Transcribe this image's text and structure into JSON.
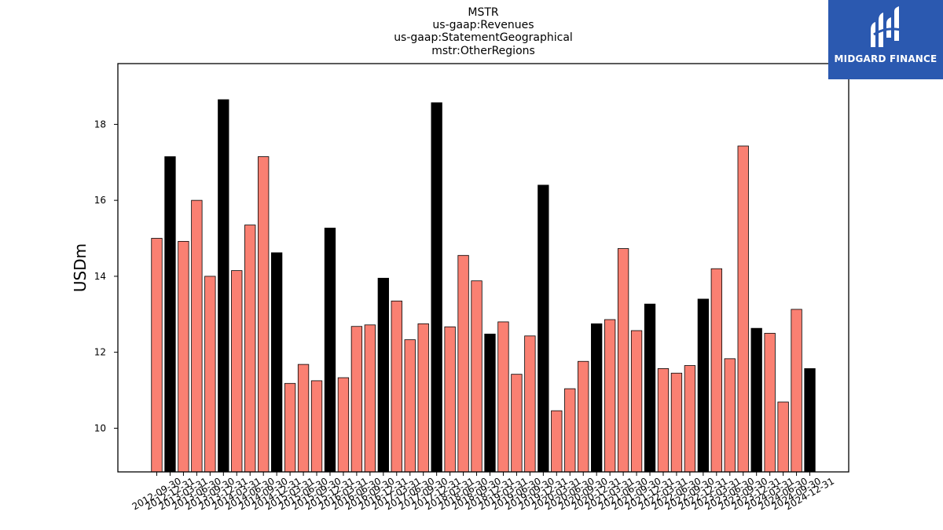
{
  "chart_data": {
    "type": "bar",
    "title_lines": [
      "MSTR",
      "us-gaap:Revenues",
      "us-gaap:StatementGeographical",
      "mstr:OtherRegions"
    ],
    "xlabel": "",
    "ylabel": "USDm",
    "ylim": [
      8.85,
      19.6
    ],
    "yticks": [
      10,
      12,
      14,
      16,
      18
    ],
    "bar_fill_quarter": "#fa8072",
    "bar_fill_year_end": "#000000",
    "categories": [
      "2012-09-30",
      "2012-12-31",
      "2013-03-31",
      "2013-06-30",
      "2013-09-30",
      "2013-12-31",
      "2014-03-31",
      "2014-06-30",
      "2014-09-30",
      "2014-12-31",
      "2015-03-31",
      "2015-06-30",
      "2015-09-30",
      "2015-12-31",
      "2016-03-31",
      "2016-06-30",
      "2016-09-30",
      "2016-12-31",
      "2017-03-31",
      "2017-06-30",
      "2017-09-30",
      "2017-12-31",
      "2018-03-31",
      "2018-06-30",
      "2018-09-30",
      "2018-12-31",
      "2019-03-31",
      "2019-06-30",
      "2019-09-30",
      "2019-12-31",
      "2020-03-31",
      "2020-06-30",
      "2020-09-30",
      "2020-12-31",
      "2021-03-31",
      "2021-06-30",
      "2021-09-30",
      "2021-12-31",
      "2022-03-31",
      "2022-06-30",
      "2022-09-30",
      "2022-12-31",
      "2023-03-31",
      "2023-06-30",
      "2023-09-30",
      "2023-12-31",
      "2024-03-31",
      "2024-06-30",
      "2024-09-30",
      "2024-12-31"
    ],
    "values": [
      15.0,
      17.15,
      14.92,
      16.0,
      14.0,
      18.65,
      14.15,
      15.35,
      17.15,
      14.62,
      11.18,
      11.68,
      11.25,
      15.27,
      11.33,
      12.68,
      12.72,
      13.95,
      13.35,
      12.33,
      12.75,
      18.57,
      12.67,
      14.55,
      13.88,
      12.48,
      12.8,
      11.42,
      12.43,
      16.4,
      10.46,
      11.04,
      11.76,
      12.75,
      12.86,
      14.73,
      12.57,
      13.27,
      11.57,
      11.45,
      11.65,
      13.4,
      14.2,
      11.83,
      17.43,
      12.63,
      12.5,
      10.69,
      13.13,
      11.57
    ]
  },
  "logo": {
    "text": "MIDGARD FINANCE",
    "background": "#2b59b0"
  }
}
